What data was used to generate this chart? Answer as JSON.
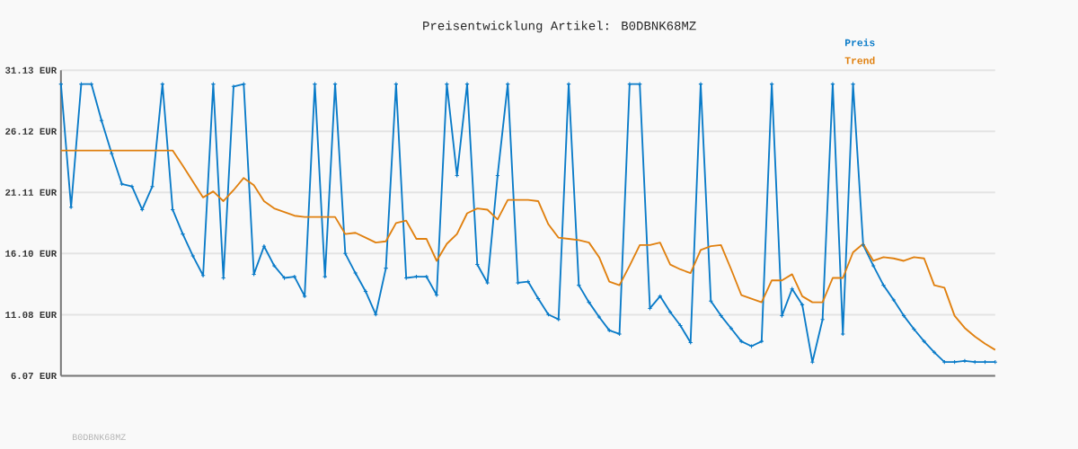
{
  "chart_data": {
    "type": "line",
    "title": "Preisentwicklung Artikel: B0DBNK68MZ",
    "categories": [
      null,
      null,
      null,
      null,
      null,
      null,
      null,
      null,
      null,
      null,
      null,
      null,
      null,
      null,
      null,
      null,
      null,
      null,
      null,
      null,
      null,
      null,
      null,
      null,
      null,
      null,
      null,
      null,
      null,
      null,
      null,
      null,
      null,
      null,
      null,
      null,
      null,
      null,
      null,
      null,
      null,
      null,
      null,
      null,
      null,
      null,
      null,
      null,
      null,
      null,
      null,
      null,
      null,
      null,
      null,
      null,
      null,
      null,
      null,
      null,
      null,
      null,
      null,
      null,
      null,
      null,
      null,
      null,
      null,
      null,
      null,
      null,
      null,
      null,
      null,
      null,
      null,
      null,
      null,
      null,
      null,
      null,
      null,
      null,
      null,
      null,
      null,
      null,
      null,
      null,
      null,
      null,
      null
    ],
    "series": [
      {
        "name": "Preis",
        "color": "#0a7bc8",
        "marker": "cross",
        "values": [
          30.0,
          19.9,
          30.0,
          30.0,
          27.0,
          24.3,
          21.8,
          21.6,
          19.7,
          21.6,
          30.0,
          19.7,
          17.7,
          15.9,
          14.3,
          30.0,
          14.1,
          29.8,
          30.0,
          14.4,
          16.7,
          15.1,
          14.1,
          14.2,
          12.6,
          30.0,
          14.2,
          30.0,
          16.1,
          14.5,
          13.0,
          11.1,
          14.9,
          30.0,
          14.1,
          14.2,
          14.2,
          12.7,
          30.0,
          22.5,
          30.0,
          15.2,
          13.7,
          22.5,
          30.0,
          13.7,
          13.8,
          12.4,
          11.1,
          10.7,
          30.0,
          13.5,
          12.1,
          10.9,
          9.8,
          9.5,
          30.0,
          30.0,
          11.6,
          12.6,
          11.3,
          10.2,
          8.8,
          30.0,
          12.2,
          11.0,
          9.96,
          8.9,
          8.5,
          8.9,
          30.0,
          11.0,
          13.2,
          11.9,
          7.2,
          10.7,
          30.0,
          9.5,
          30.0,
          16.8,
          15.1,
          13.5,
          12.3,
          11.0,
          9.9,
          8.9,
          8.0,
          7.2,
          7.2,
          7.3,
          7.2,
          7.2,
          7.2
        ]
      },
      {
        "name": "Trend",
        "color": "#e0800f",
        "marker": "none",
        "values": [
          24.55,
          24.55,
          24.55,
          24.55,
          24.55,
          24.55,
          24.55,
          24.55,
          24.55,
          24.55,
          24.55,
          24.55,
          23.3,
          22.0,
          20.7,
          21.2,
          20.4,
          21.3,
          22.3,
          21.7,
          20.4,
          19.8,
          19.5,
          19.2,
          19.1,
          19.1,
          19.1,
          19.1,
          17.7,
          17.8,
          17.4,
          17.0,
          17.1,
          18.6,
          18.8,
          17.3,
          17.3,
          15.5,
          16.9,
          17.7,
          19.4,
          19.8,
          19.7,
          18.9,
          20.5,
          20.5,
          20.5,
          20.4,
          18.5,
          17.4,
          17.3,
          17.2,
          17.0,
          15.8,
          13.8,
          13.5,
          15.1,
          16.8,
          16.8,
          17.0,
          15.2,
          14.8,
          14.5,
          16.4,
          16.7,
          16.8,
          14.8,
          12.7,
          12.4,
          12.1,
          13.9,
          13.9,
          14.4,
          12.6,
          12.1,
          12.1,
          14.1,
          14.1,
          16.2,
          16.9,
          15.5,
          15.8,
          15.7,
          15.5,
          15.8,
          15.7,
          13.5,
          13.3,
          11.0,
          10.0,
          9.3,
          8.7,
          8.2
        ]
      }
    ],
    "ylim": [
      6.07,
      31.13
    ],
    "yticks": [
      {
        "value": 6.07,
        "label": "6.07 EUR"
      },
      {
        "value": 11.08,
        "label": "11.08 EUR"
      },
      {
        "value": 16.1,
        "label": "16.10 EUR"
      },
      {
        "value": 21.11,
        "label": "21.11 EUR"
      },
      {
        "value": 26.12,
        "label": "26.12 EUR"
      },
      {
        "value": 31.13,
        "label": "31.13 EUR"
      }
    ],
    "grid": "y",
    "legend": "top right",
    "line_style": "solid",
    "annotations": [
      "B0DBNK68MZ"
    ]
  }
}
